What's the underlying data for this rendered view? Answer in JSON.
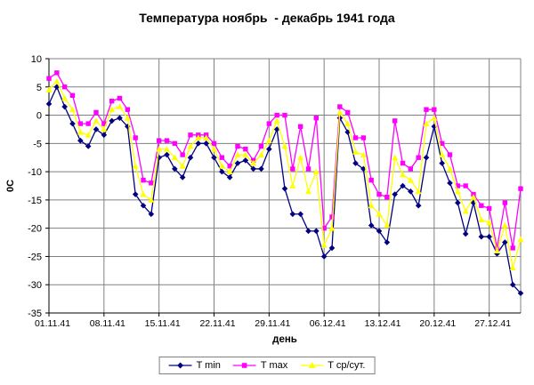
{
  "chart_data": {
    "type": "line",
    "title": "Температура ноябрь  - декабрь 1941 года",
    "xlabel": "день",
    "ylabel": "0C",
    "ylim": [
      -35,
      10
    ],
    "ytick_step": 5,
    "y_tick_labels": [
      "10",
      "5",
      "0",
      "-5",
      "-10",
      "-15",
      "-20",
      "-25",
      "-30",
      "-35"
    ],
    "x_tick_labels": [
      "01.11.41",
      "08.11.41",
      "15.11.41",
      "22.11.41",
      "29.11.41",
      "06.12.41",
      "13.12.41",
      "20.12.41",
      "27.12.41"
    ],
    "x_tick_days": [
      1,
      8,
      15,
      22,
      29,
      36,
      43,
      50,
      57
    ],
    "n_days": 61,
    "grid": true,
    "legend_position": "bottom",
    "grid_color": "#808080",
    "axis_color": "#000000",
    "series": [
      {
        "name": "T min",
        "color": "#000080",
        "marker": "diamond",
        "values": [
          2,
          5,
          1.5,
          -1.5,
          -4.5,
          -5.5,
          -2.5,
          -3.5,
          -1,
          -0.5,
          -2,
          -14,
          -16,
          -17.5,
          -7.5,
          -7,
          -9.5,
          -11,
          -7.5,
          -5,
          -5,
          -7.5,
          -10,
          -11,
          -8.5,
          -8,
          -9.5,
          -9.5,
          -6,
          -2.5,
          -13,
          -17.5,
          -17.5,
          -20.5,
          -20.5,
          -25,
          -23.5,
          -0.5,
          -3,
          -8.5,
          -9.5,
          -19.5,
          -20.5,
          -22.5,
          -14,
          -12.5,
          -13.5,
          -16,
          -7.5,
          -2,
          -8.5,
          -12,
          -15.5,
          -21,
          -15.5,
          -21.5,
          -21.5,
          -24.5,
          -22.5,
          -30,
          -31.5
        ]
      },
      {
        "name": "T max",
        "color": "#FF00FF",
        "marker": "square",
        "values": [
          6.5,
          7.5,
          5,
          3.5,
          -1.5,
          -1.5,
          0.5,
          -1.5,
          2.5,
          3,
          1,
          -4,
          -11.5,
          -12,
          -4.5,
          -4.5,
          -5,
          -7,
          -3.5,
          -3.5,
          -3.5,
          -5,
          -7.5,
          -9,
          -5.5,
          -6,
          -8,
          -5.5,
          -1.5,
          0,
          0,
          -9.5,
          -2,
          -9.5,
          -0.5,
          -20,
          -18,
          1.5,
          0.5,
          -4,
          -4,
          -11.5,
          -14,
          -14.5,
          -1,
          -8.5,
          -9.5,
          -7.5,
          1,
          1,
          -5,
          -7,
          -12.5,
          -12.5,
          -14,
          -16,
          -16.5,
          -23.5,
          -15.5,
          -23.5,
          -13
        ]
      },
      {
        "name": "T ср/сут.",
        "color": "#FFFF00",
        "marker": "triangle",
        "values": [
          4.5,
          6,
          3,
          1,
          -3,
          -3.5,
          -1,
          -2.5,
          1,
          1.5,
          -0.5,
          -9,
          -14,
          -15,
          -6,
          -6,
          -7.5,
          -9,
          -5.5,
          -4,
          -4,
          -6,
          -9,
          -10,
          -7,
          -7,
          -8.5,
          -7,
          -4.5,
          -1,
          -5.5,
          -12.5,
          -7.5,
          -13.5,
          -10,
          -23,
          -20,
          0.5,
          -1.5,
          -6.5,
          -7,
          -16,
          -17.5,
          -19.5,
          -7.5,
          -10.5,
          -11.5,
          -13.5,
          -1.5,
          -0.5,
          -7,
          -9.5,
          -13.5,
          -17,
          -14.5,
          -18.5,
          -19,
          -24,
          -19.5,
          -27,
          -22
        ]
      }
    ]
  }
}
